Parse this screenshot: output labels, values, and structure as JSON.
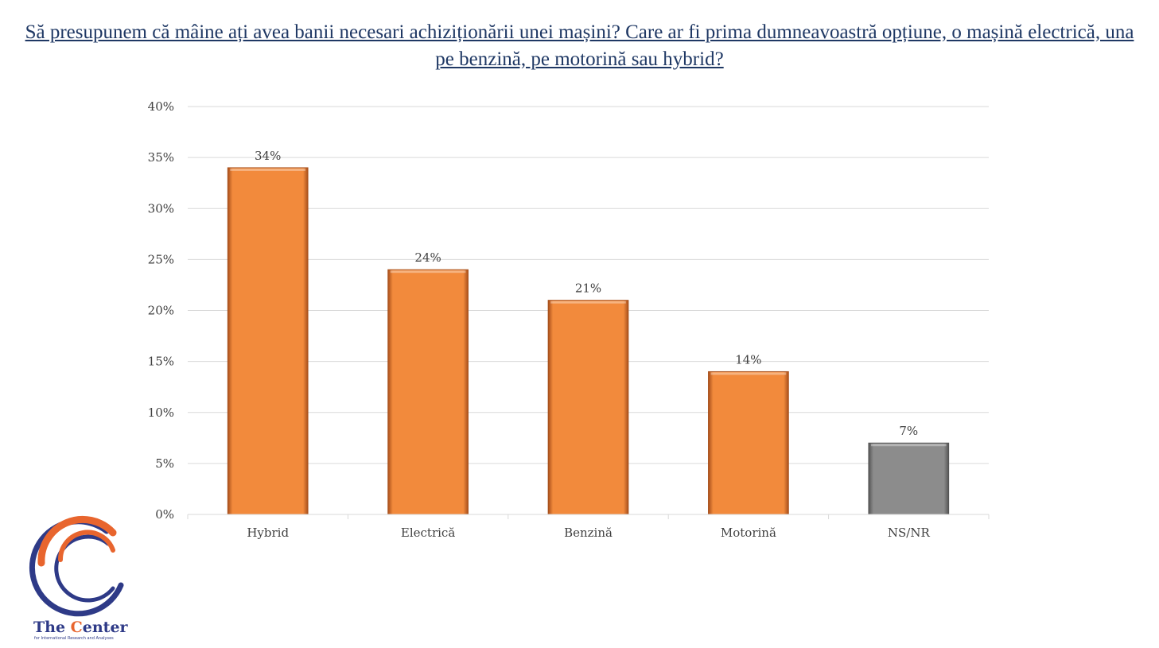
{
  "title": "Să presupunem că mâine ați avea banii necesari achiziționării unei mașini? Care ar fi prima dumneavoastră opțiune, o mașină electrică, una pe benzină, pe motorină sau hybrid?",
  "chart_data": {
    "type": "bar",
    "categories": [
      "Hybrid",
      "Electrică",
      "Benzină",
      "Motorină",
      "NS/NR"
    ],
    "values": [
      34,
      24,
      21,
      14,
      7
    ],
    "value_labels": [
      "34%",
      "24%",
      "21%",
      "14%",
      "7%"
    ],
    "ylim": [
      0,
      40
    ],
    "yticks": [
      "0%",
      "5%",
      "10%",
      "15%",
      "20%",
      "25%",
      "30%",
      "35%",
      "40%"
    ],
    "grid": true,
    "colors": [
      "#f28a3c",
      "#f28a3c",
      "#f28a3c",
      "#f28a3c",
      "#8c8c8c"
    ]
  },
  "logo": {
    "name": "The Center",
    "subtitle": "for International Research and Analyses",
    "colors": {
      "orange": "#e8652e",
      "blue": "#2e3a87"
    }
  }
}
